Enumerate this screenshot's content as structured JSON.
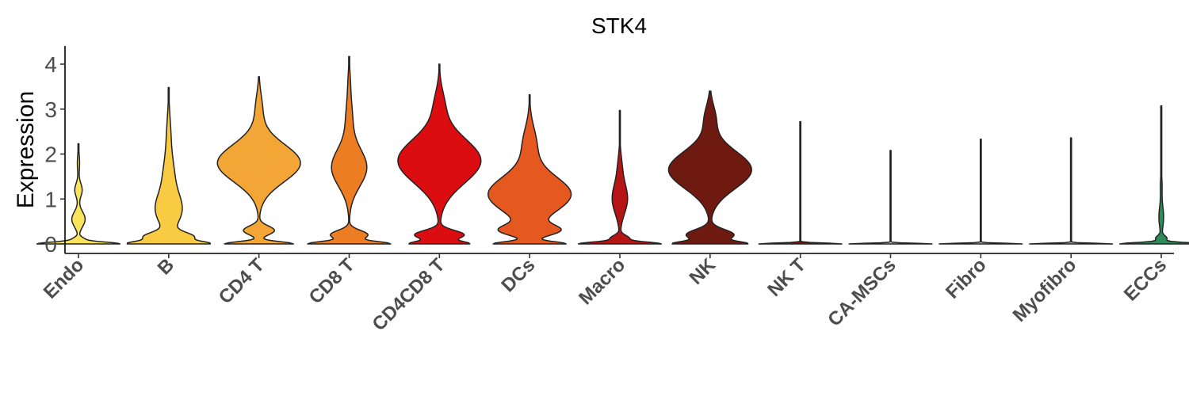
{
  "chart_data": {
    "type": "violin",
    "title": "STK4",
    "xlabel": "",
    "ylabel": "Expression",
    "ylim": [
      -0.2,
      4.35
    ],
    "yticks": [
      0,
      1,
      2,
      3,
      4
    ],
    "categories": [
      "Endo",
      "B",
      "CD4 T",
      "CD8 T",
      "CD4CD8 T",
      "DCs",
      "Macro",
      "NK",
      "NK T",
      "CA-MSCs",
      "Fibro",
      "Myofibro",
      "ECCs"
    ],
    "series": [
      {
        "name": "Endo",
        "color": "#FBE35C",
        "max": 2.23,
        "modes": [
          {
            "at": 0,
            "w": 0.55,
            "s": 0.04
          },
          {
            "at": 0.1,
            "w": 0.08,
            "s": 0.05
          },
          {
            "at": 0.55,
            "w": 0.09,
            "s": 0.17
          },
          {
            "at": 1.2,
            "w": 0.05,
            "s": 0.15
          },
          {
            "at": 1.8,
            "w": 0.015,
            "s": 0.2
          }
        ]
      },
      {
        "name": "B",
        "color": "#F8CB43",
        "max": 3.48,
        "modes": [
          {
            "at": 0,
            "w": 0.65,
            "s": 0.05
          },
          {
            "at": 0.15,
            "w": 0.45,
            "s": 0.1
          },
          {
            "at": 0.75,
            "w": 0.25,
            "s": 0.35
          },
          {
            "at": 1.5,
            "w": 0.1,
            "s": 0.4
          },
          {
            "at": 2.4,
            "w": 0.04,
            "s": 0.45
          }
        ]
      },
      {
        "name": "CD4 T",
        "color": "#F3A535",
        "max": 3.72,
        "modes": [
          {
            "at": 0,
            "w": 0.62,
            "s": 0.05
          },
          {
            "at": 0.3,
            "w": 0.28,
            "s": 0.1
          },
          {
            "at": 1.8,
            "w": 0.75,
            "s": 0.42
          },
          {
            "at": 3.0,
            "w": 0.06,
            "s": 0.35
          }
        ]
      },
      {
        "name": "CD8 T",
        "color": "#ED7D22",
        "max": 4.17,
        "modes": [
          {
            "at": 0,
            "w": 0.62,
            "s": 0.05
          },
          {
            "at": 0.2,
            "w": 0.3,
            "s": 0.1
          },
          {
            "at": 1.7,
            "w": 0.28,
            "s": 0.42
          },
          {
            "at": 2.8,
            "w": 0.05,
            "s": 0.4
          },
          {
            "at": 3.6,
            "w": 0.015,
            "s": 0.3
          }
        ]
      },
      {
        "name": "CD4CD8 T",
        "color": "#DB0D11",
        "max": 4.0,
        "modes": [
          {
            "at": 0,
            "w": 0.6,
            "s": 0.05
          },
          {
            "at": 0.2,
            "w": 0.55,
            "s": 0.1
          },
          {
            "at": 1.85,
            "w": 0.92,
            "s": 0.5
          },
          {
            "at": 3.1,
            "w": 0.1,
            "s": 0.35
          }
        ]
      },
      {
        "name": "DCs",
        "color": "#E5581F",
        "max": 3.32,
        "modes": [
          {
            "at": 0,
            "w": 0.6,
            "s": 0.05
          },
          {
            "at": 0.3,
            "w": 0.45,
            "s": 0.12
          },
          {
            "at": 1.1,
            "w": 0.72,
            "s": 0.4
          },
          {
            "at": 2.2,
            "w": 0.12,
            "s": 0.4
          }
        ]
      },
      {
        "name": "Macro",
        "color": "#B51515",
        "max": 2.97,
        "modes": [
          {
            "at": 0,
            "w": 0.62,
            "s": 0.04
          },
          {
            "at": 0.12,
            "w": 0.15,
            "s": 0.07
          },
          {
            "at": 1.0,
            "w": 0.12,
            "s": 0.33
          },
          {
            "at": 1.7,
            "w": 0.03,
            "s": 0.3
          }
        ]
      },
      {
        "name": "NK",
        "color": "#6E1A10",
        "max": 3.4,
        "modes": [
          {
            "at": 0,
            "w": 0.6,
            "s": 0.05
          },
          {
            "at": 0.2,
            "w": 0.45,
            "s": 0.12
          },
          {
            "at": 1.65,
            "w": 0.78,
            "s": 0.42
          },
          {
            "at": 2.8,
            "w": 0.1,
            "s": 0.3
          }
        ]
      },
      {
        "name": "NK T",
        "color": "#6E1A10",
        "max": 2.72,
        "modes": [
          {
            "at": 0,
            "w": 0.6,
            "s": 0.02
          }
        ]
      },
      {
        "name": "CA-MSCs",
        "color": "#D4D4C8",
        "max": 2.08,
        "modes": [
          {
            "at": 0,
            "w": 0.6,
            "s": 0.015
          }
        ]
      },
      {
        "name": "Fibro",
        "color": "#D4D4C8",
        "max": 2.33,
        "modes": [
          {
            "at": 0,
            "w": 0.6,
            "s": 0.015
          }
        ]
      },
      {
        "name": "Myofibro",
        "color": "#D4D4C8",
        "max": 2.36,
        "modes": [
          {
            "at": 0,
            "w": 0.6,
            "s": 0.015
          }
        ]
      },
      {
        "name": "ECCs",
        "color": "#2E8B57",
        "max": 3.07,
        "modes": [
          {
            "at": 0,
            "w": 0.6,
            "s": 0.03
          },
          {
            "at": 0.12,
            "w": 0.08,
            "s": 0.06
          },
          {
            "at": 0.6,
            "w": 0.035,
            "s": 0.25
          },
          {
            "at": 1.3,
            "w": 0.012,
            "s": 0.2
          }
        ]
      }
    ]
  }
}
